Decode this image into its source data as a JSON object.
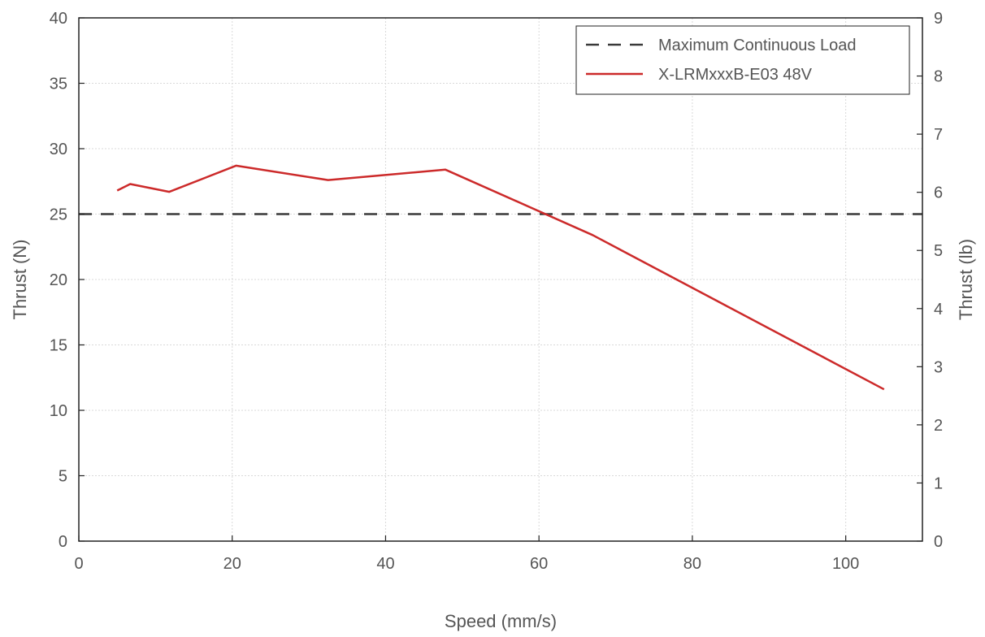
{
  "chart_data": {
    "type": "line",
    "xlabel": "Speed (mm/s)",
    "ylabel": "Thrust (N)",
    "ylabel_right": "Thrust (lb)",
    "xlim": [
      0,
      110
    ],
    "ylim": [
      0,
      40
    ],
    "ylim_right": [
      0,
      9
    ],
    "x_ticks": [
      "0",
      "20",
      "40",
      "60",
      "80",
      "100"
    ],
    "y_ticks": [
      "0",
      "5",
      "10",
      "15",
      "20",
      "25",
      "30",
      "35",
      "40"
    ],
    "y_right_ticks": [
      "0",
      "1",
      "2",
      "3",
      "4",
      "5",
      "6",
      "7",
      "8",
      "9"
    ],
    "grid": true,
    "legend_position": "top-right",
    "series": [
      {
        "name": "Maximum Continuous Load",
        "style": "dashed",
        "color": "#3a3a3a",
        "x": [
          0,
          110
        ],
        "y": [
          25,
          25
        ]
      },
      {
        "name": "X-LRMxxxB-E03 48V",
        "style": "solid",
        "color": "#cc2a2a",
        "x": [
          5,
          6.7,
          11.8,
          20.5,
          32.5,
          47.8,
          67,
          105
        ],
        "y": [
          26.8,
          27.3,
          26.7,
          28.7,
          27.6,
          28.4,
          23.4,
          11.6
        ]
      }
    ]
  }
}
